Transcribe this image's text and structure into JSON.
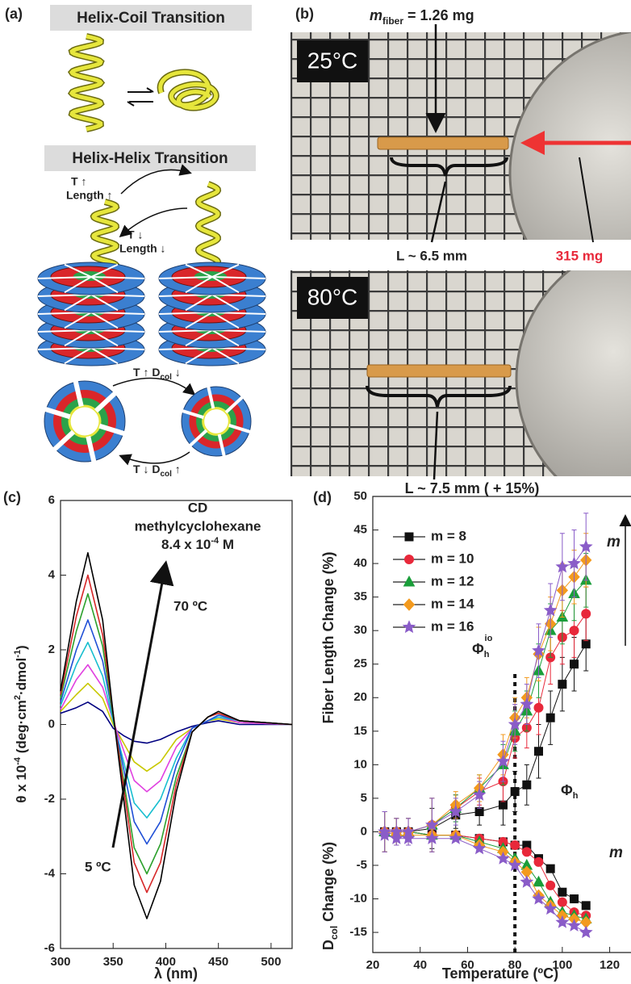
{
  "panel_a": {
    "label": "(a)",
    "title_coil": "Helix-Coil Transition",
    "title_helix": "Helix-Helix Transition",
    "t_up": "T ↑",
    "length_up": "Length ↑",
    "t_down": "T ↓",
    "length_down": "Length ↓",
    "shrink": [
      "T ↑ D",
      "col",
      " ↓"
    ],
    "grow": [
      "T ↓ D",
      "col",
      " ↑"
    ]
  },
  "panel_b": {
    "label": "(b)",
    "temp_top": "25°C",
    "temp_bottom": "80°C",
    "mass": [
      "m",
      "fiber",
      " = 1.26 mg"
    ],
    "length_top": "L ~ 6.5 mm",
    "coin_mass": "315 mg",
    "length_bottom": "L ~ 7.5 mm ( + 15%)"
  },
  "chart_data": [
    {
      "type": "line",
      "label": "(c)",
      "annotations": [
        "CD",
        "methylcyclohexane"
      ],
      "concentration": [
        "8.4 x 10",
        "-4",
        " M"
      ],
      "arrow_end": "70 ºC",
      "arrow_start": "5 ºC",
      "x_label": "λ (nm)",
      "y_label": [
        "θ x 10",
        "-4",
        " (deg·cm",
        "2",
        "·dmol",
        "-1",
        ")"
      ],
      "x": [
        300,
        315,
        326,
        340,
        350,
        360,
        370,
        382,
        395,
        410,
        425,
        440,
        450,
        470,
        520
      ],
      "series": [
        {
          "color": "#000000",
          "values": [
            0.9,
            3.3,
            4.6,
            2.8,
            0.3,
            -2.0,
            -4.3,
            -5.2,
            -4.2,
            -1.8,
            -0.2,
            0.2,
            0.35,
            0.1,
            0.0
          ]
        },
        {
          "color": "#d62728",
          "values": [
            0.8,
            2.9,
            4.0,
            2.4,
            0.3,
            -1.7,
            -3.7,
            -4.5,
            -3.7,
            -1.6,
            -0.2,
            0.2,
            0.3,
            0.1,
            0.0
          ]
        },
        {
          "color": "#2ca02c",
          "values": [
            0.7,
            2.5,
            3.5,
            2.1,
            0.2,
            -1.5,
            -3.3,
            -4.0,
            -3.2,
            -1.4,
            -0.2,
            0.2,
            0.3,
            0.1,
            0.0
          ]
        },
        {
          "color": "#1f4fd6",
          "values": [
            0.6,
            2.0,
            2.8,
            1.7,
            0.2,
            -1.2,
            -2.6,
            -3.2,
            -2.6,
            -1.1,
            -0.1,
            0.1,
            0.25,
            0.1,
            0.0
          ]
        },
        {
          "color": "#17becf",
          "values": [
            0.5,
            1.6,
            2.2,
            1.3,
            0.1,
            -1.0,
            -2.1,
            -2.5,
            -2.0,
            -0.9,
            -0.1,
            0.1,
            0.2,
            0.1,
            0.0
          ]
        },
        {
          "color": "#e040e0",
          "values": [
            0.4,
            1.2,
            1.6,
            1.0,
            0.1,
            -0.7,
            -1.5,
            -1.8,
            -1.5,
            -0.6,
            -0.1,
            0.1,
            0.2,
            0.05,
            0.0
          ]
        },
        {
          "color": "#c8c800",
          "values": [
            0.35,
            0.8,
            1.1,
            0.7,
            0.0,
            -0.5,
            -1.0,
            -1.25,
            -1.0,
            -0.4,
            -0.1,
            0.1,
            0.15,
            0.05,
            0.0
          ]
        },
        {
          "color": "#000080",
          "values": [
            0.3,
            0.45,
            0.6,
            0.35,
            -0.1,
            -0.3,
            -0.45,
            -0.5,
            -0.4,
            -0.2,
            -0.05,
            0.05,
            0.1,
            0.0,
            0.0
          ]
        }
      ],
      "xlim": [
        300,
        520
      ],
      "ylim": [
        -6,
        6
      ],
      "xticks": [
        300,
        350,
        400,
        450,
        500
      ],
      "yticks": [
        -6,
        -4,
        -2,
        0,
        2,
        4,
        6
      ]
    },
    {
      "type": "scatter",
      "label": "(d)",
      "x_label": "Temperature (ºC)",
      "y_label_top": "Fiber Length Change (%)",
      "y_label_bottom": [
        "D",
        "col",
        " Change (%)"
      ],
      "phi_io": [
        "Φ",
        "h",
        "io"
      ],
      "phi": [
        "Φ",
        "h"
      ],
      "trend": "m",
      "transition_x": 80,
      "x": [
        25,
        30,
        35,
        45,
        55,
        65,
        75,
        80,
        85,
        90,
        95,
        100,
        105,
        110
      ],
      "series": [
        {
          "name": "m = 8",
          "color": "#111111",
          "marker": "square",
          "values": [
            0,
            0,
            0,
            0.5,
            2.5,
            3,
            4,
            6,
            7,
            12,
            17,
            22,
            25,
            28
          ],
          "errors": [
            3,
            2,
            2,
            3,
            2,
            2,
            3,
            3,
            3,
            4,
            4,
            4,
            4,
            4
          ],
          "dcol_values": [
            0,
            0,
            0,
            -0.5,
            -0.5,
            -1,
            -1.5,
            -2,
            -2,
            -4,
            -5.5,
            -9,
            -10,
            -11
          ]
        },
        {
          "name": "m = 10",
          "color": "#e8283a",
          "marker": "circle",
          "values": [
            0,
            0,
            0,
            1,
            3.5,
            6,
            7.5,
            14,
            15.5,
            18.5,
            26,
            29,
            30,
            32.5
          ],
          "errors": [
            3,
            2,
            2,
            4,
            2,
            2,
            3,
            3,
            3,
            4,
            4,
            4,
            4,
            4
          ],
          "dcol_values": [
            0,
            0,
            0,
            -0.5,
            -0.5,
            -1,
            -1.5,
            -2,
            -3,
            -4.5,
            -8,
            -10.5,
            -12,
            -12.5
          ]
        },
        {
          "name": "m = 12",
          "color": "#1a9e3a",
          "marker": "triangle",
          "values": [
            0,
            0,
            0,
            1,
            3.5,
            6.5,
            10,
            15,
            18,
            24,
            30,
            32,
            35.5,
            37.5
          ],
          "errors": [
            3,
            2,
            2,
            4,
            2,
            2,
            3,
            3,
            3,
            4,
            4,
            4,
            4,
            4
          ],
          "dcol_values": [
            0,
            0,
            0,
            -0.5,
            -0.5,
            -1.5,
            -2.5,
            -4,
            -5,
            -7.5,
            -10.5,
            -12,
            -12.5,
            -13
          ]
        },
        {
          "name": "m = 14",
          "color": "#f39a1e",
          "marker": "diamond",
          "values": [
            0,
            0,
            0,
            1,
            4,
            6.5,
            11.5,
            17,
            20,
            26.5,
            31,
            36,
            38,
            40.5
          ],
          "errors": [
            3,
            2,
            2,
            4,
            2,
            2,
            3,
            3,
            3,
            4,
            4,
            4,
            4,
            4
          ],
          "dcol_values": [
            0,
            -0.5,
            -0.5,
            -0.5,
            -0.5,
            -2,
            -3,
            -4.5,
            -6,
            -9.5,
            -11,
            -12.5,
            -13,
            -13.5
          ]
        },
        {
          "name": "m = 16",
          "color": "#8a5cc8",
          "marker": "star",
          "values": [
            0,
            0,
            0,
            1,
            3,
            5.5,
            10.5,
            16,
            19,
            27,
            33,
            39.5,
            40,
            42.5
          ],
          "errors": [
            3,
            2,
            2,
            4,
            2,
            2,
            3,
            3,
            3,
            4,
            4,
            5,
            5,
            5
          ],
          "dcol_values": [
            -0.5,
            -1,
            -1,
            -1,
            -1,
            -2.5,
            -4,
            -5,
            -7.5,
            -10,
            -11.5,
            -13.5,
            -14,
            -15
          ]
        }
      ],
      "xlim": [
        20,
        129
      ],
      "ylim": [
        -18,
        50
      ],
      "xticks": [
        20,
        40,
        60,
        80,
        100,
        120
      ],
      "yticks": [
        -15,
        -10,
        -5,
        0,
        5,
        10,
        15,
        20,
        25,
        30,
        35,
        40,
        45,
        50
      ]
    }
  ]
}
